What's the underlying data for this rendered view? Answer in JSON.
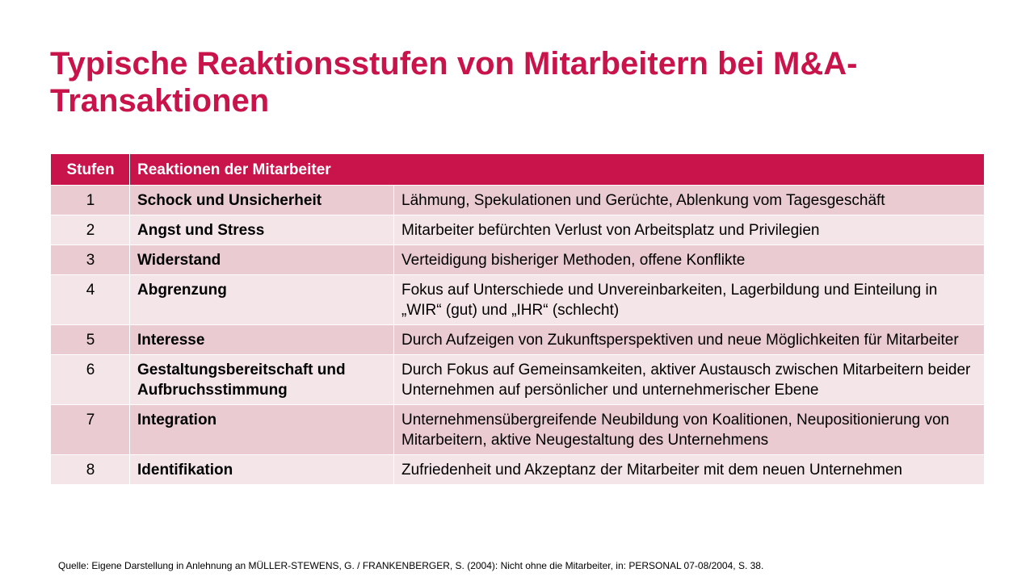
{
  "slide": {
    "title": "Typische Reaktionsstufen von Mitarbeitern bei M&A-Transaktionen",
    "source": "Quelle: Eigene Darstellung in Anlehnung an MÜLLER-STEWENS, G. / FRANKENBERGER, S. (2004): Nicht ohne die Mitarbeiter, in: PERSONAL 07-08/2004, S. 38."
  },
  "table": {
    "headers": {
      "stage": "Stufen",
      "reaction": "Reaktionen der Mitarbeiter"
    },
    "rows": [
      {
        "num": "1",
        "stage": "Schock und Unsicherheit",
        "description": "Lähmung, Spekulationen und Gerüchte, Ablenkung vom Tagesgeschäft"
      },
      {
        "num": "2",
        "stage": "Angst und Stress",
        "description": "Mitarbeiter befürchten Verlust von Arbeitsplatz und Privilegien"
      },
      {
        "num": "3",
        "stage": "Widerstand",
        "description": "Verteidigung bisheriger Methoden, offene Konflikte"
      },
      {
        "num": "4",
        "stage": "Abgrenzung",
        "description": "Fokus auf Unterschiede und Unvereinbarkeiten, Lagerbildung und Einteilung in „WIR“ (gut) und „IHR“ (schlecht)"
      },
      {
        "num": "5",
        "stage": "Interesse",
        "description": "Durch Aufzeigen von Zukunftsperspektiven und neue Möglichkeiten für Mitarbeiter"
      },
      {
        "num": "6",
        "stage": "Gestaltungsbereitschaft und Aufbruchsstimmung",
        "description": "Durch Fokus auf Gemeinsamkeiten, aktiver Austausch zwischen Mitarbeitern beider Unternehmen auf persönlicher und unternehmerischer Ebene"
      },
      {
        "num": "7",
        "stage": "Integration",
        "description": "Unternehmensübergreifende Neubildung von Koalitionen, Neupositionierung von Mitarbeitern, aktive Neugestaltung des Unternehmens"
      },
      {
        "num": "8",
        "stage": "Identifikation",
        "description": "Zufriedenheit und Akzeptanz der Mitarbeiter mit dem neuen Unternehmen"
      }
    ]
  },
  "colors": {
    "accent": "#c8144b",
    "row_dark": "#e9cbd1",
    "row_light": "#f4e5e8"
  }
}
